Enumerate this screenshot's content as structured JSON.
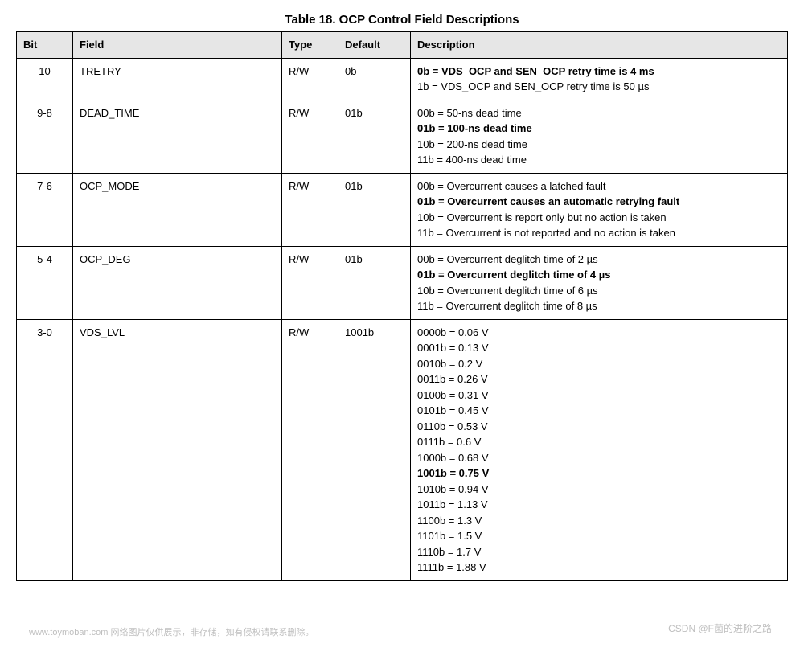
{
  "title": "Table 18. OCP Control Field Descriptions",
  "columns": [
    "Bit",
    "Field",
    "Type",
    "Default",
    "Description"
  ],
  "rows": [
    {
      "bit": "10",
      "field": "TRETRY",
      "type": "R/W",
      "default": "0b",
      "desc": [
        {
          "text": "0b = VDS_OCP and SEN_OCP retry time is 4 ms",
          "bold": true
        },
        {
          "text": "1b = VDS_OCP and SEN_OCP retry time is 50 µs",
          "bold": false
        }
      ]
    },
    {
      "bit": "9-8",
      "field": "DEAD_TIME",
      "type": "R/W",
      "default": "01b",
      "desc": [
        {
          "text": "00b = 50-ns dead time",
          "bold": false
        },
        {
          "text": "01b = 100-ns dead time",
          "bold": true
        },
        {
          "text": "10b = 200-ns dead time",
          "bold": false
        },
        {
          "text": "11b = 400-ns dead time",
          "bold": false
        }
      ]
    },
    {
      "bit": "7-6",
      "field": "OCP_MODE",
      "type": "R/W",
      "default": "01b",
      "desc": [
        {
          "text": "00b = Overcurrent causes a latched fault",
          "bold": false
        },
        {
          "text": "01b = Overcurrent causes an automatic retrying fault",
          "bold": true
        },
        {
          "text": "10b = Overcurrent is report only but no action is taken",
          "bold": false
        },
        {
          "text": "11b = Overcurrent is not reported and no action is taken",
          "bold": false
        }
      ]
    },
    {
      "bit": "5-4",
      "field": "OCP_DEG",
      "type": "R/W",
      "default": "01b",
      "desc": [
        {
          "text": "00b = Overcurrent deglitch time of 2 µs",
          "bold": false
        },
        {
          "text": "01b = Overcurrent deglitch time of 4 µs",
          "bold": true
        },
        {
          "text": "10b = Overcurrent deglitch time of 6 µs",
          "bold": false
        },
        {
          "text": "11b = Overcurrent deglitch time of 8 µs",
          "bold": false
        }
      ]
    },
    {
      "bit": "3-0",
      "field": "VDS_LVL",
      "type": "R/W",
      "default": "1001b",
      "desc": [
        {
          "text": "0000b = 0.06 V",
          "bold": false
        },
        {
          "text": "0001b = 0.13 V",
          "bold": false
        },
        {
          "text": "0010b = 0.2 V",
          "bold": false
        },
        {
          "text": "0011b = 0.26 V",
          "bold": false
        },
        {
          "text": "0100b = 0.31 V",
          "bold": false
        },
        {
          "text": "0101b = 0.45 V",
          "bold": false
        },
        {
          "text": "0110b = 0.53 V",
          "bold": false
        },
        {
          "text": "0111b = 0.6 V",
          "bold": false
        },
        {
          "text": "1000b = 0.68 V",
          "bold": false
        },
        {
          "text": "1001b = 0.75 V",
          "bold": true
        },
        {
          "text": "1010b = 0.94 V",
          "bold": false
        },
        {
          "text": "1011b = 1.13 V",
          "bold": false
        },
        {
          "text": "1100b = 1.3 V",
          "bold": false
        },
        {
          "text": "1101b = 1.5 V",
          "bold": false
        },
        {
          "text": "1110b = 1.7 V",
          "bold": false
        },
        {
          "text": "1111b = 1.88 V",
          "bold": false
        }
      ]
    }
  ],
  "footer_left": "www.toymoban.com 网络图片仅供展示，非存储，如有侵权请联系删除。",
  "footer_right": "CSDN @F菌的进阶之路",
  "colors": {
    "header_bg": "#e6e6e6",
    "border": "#000000",
    "text": "#000000",
    "footer": "#bfbfbf",
    "background": "#ffffff"
  }
}
